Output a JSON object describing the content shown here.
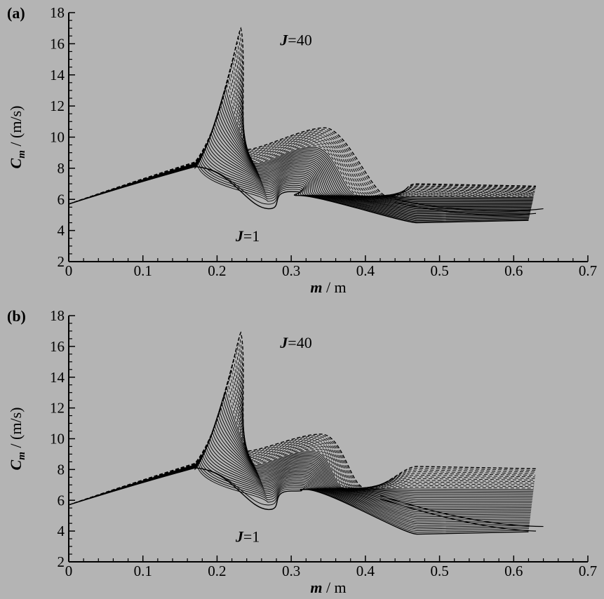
{
  "colors": {
    "background": "#b4b4b4",
    "ink": "#000000"
  },
  "chart_data": [
    {
      "type": "line",
      "panel_label": "(a)",
      "xlabel_main": "m",
      "xlabel_unit": " / m",
      "ylabel_main": "C",
      "ylabel_sub": "m",
      "ylabel_unit": " / (m/s)",
      "xlim": [
        0,
        0.7
      ],
      "ylim": [
        2,
        18
      ],
      "xticks": [
        "0",
        "0.1",
        "0.2",
        "0.3",
        "0.4",
        "0.5",
        "0.6",
        "0.7"
      ],
      "yticks": [
        "2",
        "4",
        "6",
        "8",
        "10",
        "12",
        "14",
        "16",
        "18"
      ],
      "grid": false,
      "annotations": [
        {
          "italic": "J",
          "rest": "=40",
          "x": 0.285,
          "y": 15.9
        },
        {
          "italic": "J",
          "rest": "=1",
          "x": 0.225,
          "y": 3.3
        }
      ],
      "family": {
        "name_prefix": "J=",
        "j_min": 1,
        "j_max": 40,
        "left_y0": 5.7,
        "shoulder": {
          "x": 0.17,
          "y_min": 8.1,
          "y_max": 8.4
        },
        "peak": {
          "x_min": 0.17,
          "x_max": 0.232,
          "y_min": 8.1,
          "y_max": 17.0
        },
        "dip": {
          "x_min": 0.27,
          "x_max": 0.24,
          "y_min": 5.4,
          "y_max": 9.2
        },
        "bump": {
          "x_min": 0.3,
          "x_max": 0.345,
          "y_min": 6.5,
          "y_max": 10.6,
          "dashed_from_j": 28
        },
        "join": {
          "x_min": 0.31,
          "x_max": 0.43,
          "y_min": 6.25,
          "y_max": 6.2
        },
        "tail": {
          "x_start": 0.47,
          "x_end_min": 0.62,
          "x_end_max": 0.63,
          "y_min": 4.5,
          "y_max": 7.0
        },
        "extra_curves": [
          {
            "points": [
              [
                0.44,
                6.0
              ],
              [
                0.55,
                4.9
              ],
              [
                0.64,
                5.4
              ]
            ]
          },
          {
            "points": [
              [
                0.44,
                5.8
              ],
              [
                0.55,
                4.7
              ],
              [
                0.63,
                5.1
              ]
            ]
          }
        ]
      }
    },
    {
      "type": "line",
      "panel_label": "(b)",
      "xlabel_main": "m",
      "xlabel_unit": " / m",
      "ylabel_main": "C",
      "ylabel_sub": "m",
      "ylabel_unit": " / (m/s)",
      "xlim": [
        0,
        0.7
      ],
      "ylim": [
        2,
        18
      ],
      "xticks": [
        "0",
        "0.1",
        "0.2",
        "0.3",
        "0.4",
        "0.5",
        "0.6",
        "0.7"
      ],
      "yticks": [
        "2",
        "4",
        "6",
        "8",
        "10",
        "12",
        "14",
        "16",
        "18"
      ],
      "grid": false,
      "annotations": [
        {
          "italic": "J",
          "rest": "=40",
          "x": 0.285,
          "y": 15.9
        },
        {
          "italic": "J",
          "rest": "=1",
          "x": 0.225,
          "y": 3.3
        }
      ],
      "family": {
        "name_prefix": "J=",
        "j_min": 1,
        "j_max": 40,
        "left_y0": 5.7,
        "shoulder": {
          "x": 0.17,
          "y_min": 8.1,
          "y_max": 8.4
        },
        "peak": {
          "x_min": 0.17,
          "x_max": 0.232,
          "y_min": 8.1,
          "y_max": 16.9
        },
        "dip": {
          "x_min": 0.27,
          "x_max": 0.24,
          "y_min": 5.4,
          "y_max": 9.2
        },
        "bump": {
          "x_min": 0.3,
          "x_max": 0.34,
          "y_min": 6.6,
          "y_max": 10.3,
          "dashed_from_j": 28
        },
        "join": {
          "x_min": 0.32,
          "x_max": 0.4,
          "y_min": 6.7,
          "y_max": 6.8
        },
        "tail": {
          "x_start": 0.47,
          "x_end_min": 0.62,
          "x_end_max": 0.63,
          "y_min": 3.8,
          "y_max": 8.2
        },
        "extra_curves": [
          {
            "points": [
              [
                0.42,
                6.3
              ],
              [
                0.55,
                4.3
              ],
              [
                0.64,
                4.3
              ]
            ]
          },
          {
            "points": [
              [
                0.42,
                6.1
              ],
              [
                0.55,
                4.1
              ],
              [
                0.63,
                4.0
              ]
            ]
          }
        ]
      }
    }
  ]
}
